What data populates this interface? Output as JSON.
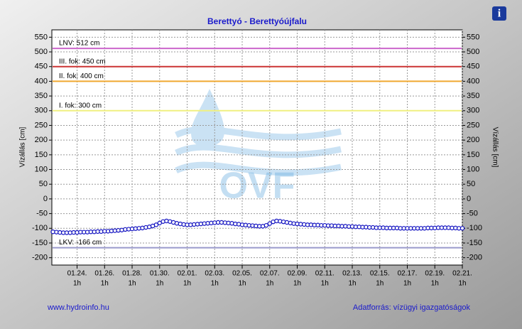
{
  "chart_data": {
    "type": "line",
    "title": "Berettyó - Berettyóújfalu",
    "ylabel": "Vízállás [cm]",
    "watermark": "OVF",
    "footer_left": "www.hydroinfo.hu",
    "footer_right": "Adatforrás: vízügyi igazgatóságok",
    "info_icon": "i",
    "ylim": [
      -225,
      575
    ],
    "yticks": [
      -200,
      -150,
      -100,
      -50,
      0,
      50,
      100,
      150,
      200,
      250,
      300,
      350,
      400,
      450,
      500,
      550
    ],
    "grid": true,
    "xlim": [
      "01.22. 5h",
      "02.21. 1h"
    ],
    "xticks": [
      {
        "value": "01.24. 1h",
        "label": "01.24."
      },
      {
        "value": "01.26. 1h",
        "label": "01.26."
      },
      {
        "value": "01.28. 1h",
        "label": "01.28."
      },
      {
        "value": "01.30. 1h",
        "label": "01.30."
      },
      {
        "value": "02.01. 1h",
        "label": "02.01."
      },
      {
        "value": "02.03. 1h",
        "label": "02.03."
      },
      {
        "value": "02.05. 1h",
        "label": "02.05."
      },
      {
        "value": "02.07. 1h",
        "label": "02.07."
      },
      {
        "value": "02.09. 1h",
        "label": "02.09."
      },
      {
        "value": "02.11. 1h",
        "label": "02.11."
      },
      {
        "value": "02.13. 1h",
        "label": "02.13."
      },
      {
        "value": "02.15. 1h",
        "label": "02.15."
      },
      {
        "value": "02.17. 1h",
        "label": "02.17."
      },
      {
        "value": "02.19. 1h",
        "label": "02.19."
      },
      {
        "value": "02.21. 1h",
        "label": "02.21."
      }
    ],
    "xtick_hour": "1h",
    "reference_lines": [
      {
        "label": "LNV: 512 cm",
        "value": 512,
        "color": "#cc66cc"
      },
      {
        "label": "III. fok: 450 cm",
        "value": 450,
        "color": "#cc3333"
      },
      {
        "label": "II. fok: 400 cm",
        "value": 400,
        "color": "#f0a830"
      },
      {
        "label": "I. fok: 300 cm",
        "value": 300,
        "color": "#f0f080"
      },
      {
        "label": "LKV: -166 cm",
        "value": -166,
        "color": "#9999cc"
      }
    ],
    "series": [
      {
        "color": "#1010c0",
        "x": [
          "01.22. 7h",
          "01.22. 13h",
          "01.22. 19h",
          "01.23. 1h",
          "01.23. 7h",
          "01.23. 13h",
          "01.23. 19h",
          "01.24. 1h",
          "01.24. 7h",
          "01.24. 13h",
          "01.24. 19h",
          "01.25. 1h",
          "01.25. 7h",
          "01.25. 13h",
          "01.25. 19h",
          "01.26. 1h",
          "01.26. 7h",
          "01.26. 13h",
          "01.26. 19h",
          "01.27. 1h",
          "01.27. 7h",
          "01.27. 13h",
          "01.27. 19h",
          "01.28. 1h",
          "01.28. 7h",
          "01.28. 13h",
          "01.28. 19h",
          "01.29. 1h",
          "01.29. 7h",
          "01.29. 13h",
          "01.29. 19h",
          "01.30. 1h",
          "01.30. 7h",
          "01.30. 13h",
          "01.30. 19h",
          "01.31. 1h",
          "01.31. 7h",
          "01.31. 13h",
          "01.31. 19h",
          "02.01. 1h",
          "02.01. 7h",
          "02.01. 13h",
          "02.01. 19h",
          "02.02. 1h",
          "02.02. 7h",
          "02.02. 13h",
          "02.02. 19h",
          "02.03. 1h",
          "02.03. 7h",
          "02.03. 13h",
          "02.03. 19h",
          "02.04. 1h",
          "02.04. 7h",
          "02.04. 13h",
          "02.04. 19h",
          "02.05. 1h",
          "02.05. 7h",
          "02.05. 13h",
          "02.05. 19h",
          "02.06. 1h",
          "02.06. 7h",
          "02.06. 13h",
          "02.06. 19h",
          "02.07. 1h",
          "02.07. 7h",
          "02.07. 13h",
          "02.07. 19h",
          "02.08. 1h",
          "02.08. 7h",
          "02.08. 13h",
          "02.08. 19h",
          "02.09. 1h",
          "02.09. 7h",
          "02.09. 13h",
          "02.09. 19h",
          "02.10. 1h",
          "02.10. 7h",
          "02.10. 13h",
          "02.10. 19h",
          "02.11. 1h",
          "02.11. 7h",
          "02.11. 13h",
          "02.11. 19h",
          "02.12. 1h",
          "02.12. 7h",
          "02.12. 13h",
          "02.12. 19h",
          "02.13. 1h",
          "02.13. 7h",
          "02.13. 13h",
          "02.13. 19h",
          "02.14. 1h",
          "02.14. 7h",
          "02.14. 13h",
          "02.14. 19h",
          "02.15. 1h",
          "02.15. 7h",
          "02.15. 13h",
          "02.15. 19h",
          "02.16. 1h",
          "02.16. 7h",
          "02.16. 13h",
          "02.16. 19h",
          "02.17. 1h",
          "02.17. 7h",
          "02.17. 13h",
          "02.17. 19h",
          "02.18. 1h",
          "02.18. 7h",
          "02.18. 13h",
          "02.18. 19h",
          "02.19. 1h",
          "02.19. 7h",
          "02.19. 13h",
          "02.19. 19h",
          "02.20. 1h",
          "02.20. 7h",
          "02.20. 13h",
          "02.20. 19h",
          "02.21. 1h"
        ],
        "values": [
          -112,
          -113,
          -114,
          -115,
          -115,
          -115,
          -114,
          -114,
          -113,
          -113,
          -113,
          -112,
          -112,
          -111,
          -111,
          -110,
          -110,
          -109,
          -108,
          -107,
          -106,
          -104,
          -103,
          -102,
          -101,
          -100,
          -99,
          -97,
          -95,
          -92,
          -88,
          -82,
          -77,
          -75,
          -77,
          -80,
          -83,
          -85,
          -87,
          -88,
          -88,
          -87,
          -86,
          -85,
          -84,
          -83,
          -82,
          -81,
          -80,
          -80,
          -81,
          -82,
          -83,
          -85,
          -86,
          -88,
          -89,
          -90,
          -91,
          -92,
          -93,
          -93,
          -90,
          -84,
          -78,
          -75,
          -76,
          -78,
          -80,
          -82,
          -84,
          -85,
          -86,
          -87,
          -88,
          -88,
          -89,
          -89,
          -90,
          -90,
          -91,
          -91,
          -92,
          -92,
          -93,
          -93,
          -94,
          -94,
          -95,
          -95,
          -96,
          -96,
          -97,
          -97,
          -98,
          -98,
          -98,
          -99,
          -99,
          -99,
          -99,
          -100,
          -100,
          -100,
          -100,
          -100,
          -100,
          -100,
          -100,
          -99,
          -99,
          -99,
          -98,
          -98,
          -98,
          -98,
          -99,
          -99,
          -100,
          -100
        ]
      }
    ]
  }
}
